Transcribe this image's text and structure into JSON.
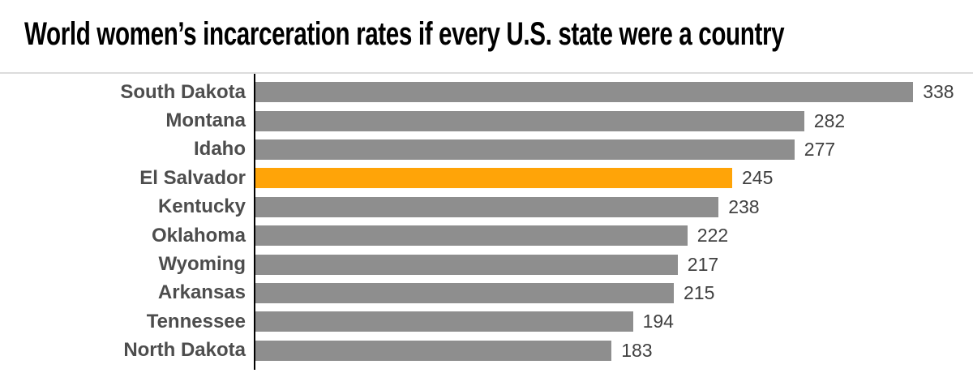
{
  "chart_data": {
    "type": "bar",
    "orientation": "horizontal",
    "title": "World women’s incarceration rates if every U.S. state were a country",
    "categories": [
      "South Dakota",
      "Montana",
      "Idaho",
      "El Salvador",
      "Kentucky",
      "Oklahoma",
      "Wyoming",
      "Arkansas",
      "Tennessee",
      "North Dakota"
    ],
    "values": [
      338,
      282,
      277,
      245,
      238,
      222,
      217,
      215,
      194,
      183
    ],
    "highlight_category": "El Salvador",
    "value_labels_shown": true,
    "gridlines": false,
    "legend": false,
    "xlim": [
      0,
      369
    ],
    "colors": {
      "bar": "#8e8e8e",
      "highlight": "#ffa408",
      "axis": "#000000",
      "category_label": "#4d4d4d",
      "value_label": "#404040",
      "divider": "#dcdcdc",
      "title": "#000000",
      "background": "#ffffff"
    }
  }
}
